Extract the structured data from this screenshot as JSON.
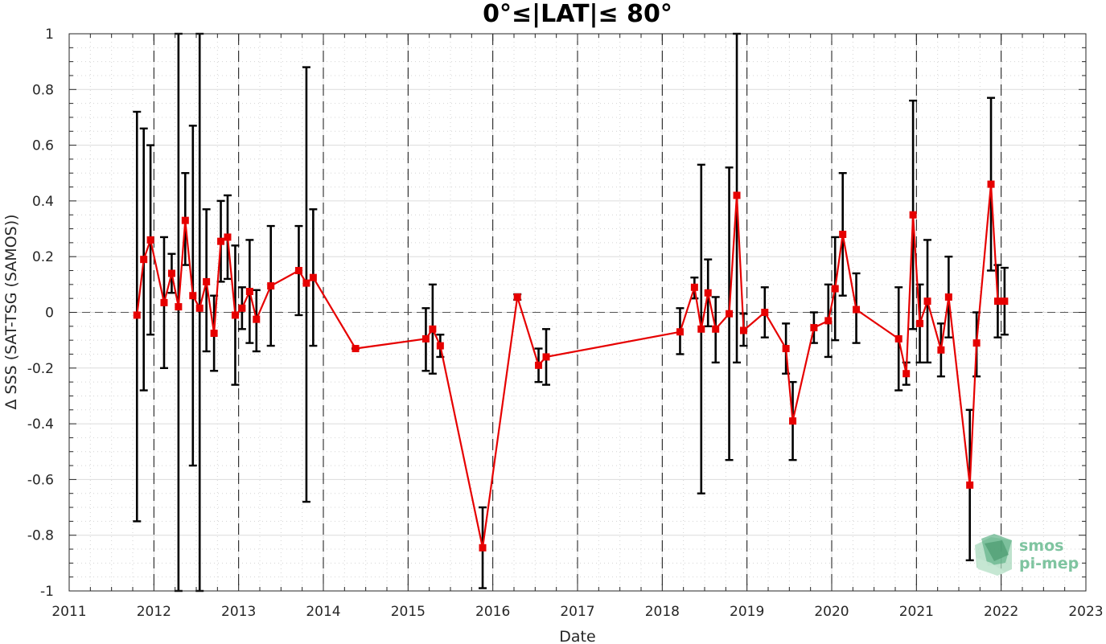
{
  "chart_data": {
    "type": "line",
    "title": "0°≤|LAT|≤ 80°",
    "xlabel": "Date",
    "ylabel": "Δ SSS (SAT-TSG (SAMOS))",
    "xlim": [
      2011,
      2023
    ],
    "ylim": [
      -1,
      1
    ],
    "x_ticks": [
      "2011",
      "2012",
      "2013",
      "2014",
      "2015",
      "2016",
      "2017",
      "2018",
      "2019",
      "2020",
      "2021",
      "2022",
      "2023"
    ],
    "y_ticks": [
      "1",
      "0.8",
      "0.6",
      "0.4",
      "0.2",
      "0",
      "-0.2",
      "-0.4",
      "-0.6",
      "-0.8",
      "-1"
    ],
    "year_separators": [
      2012,
      2013,
      2014,
      2015,
      2016,
      2017,
      2018,
      2019,
      2020,
      2021,
      2022
    ],
    "grid": true,
    "series": [
      {
        "color": "#e60000",
        "marker": "square",
        "points": [
          {
            "x": 2011.8,
            "y": -0.01,
            "low": -0.75,
            "high": 0.72
          },
          {
            "x": 2011.88,
            "y": 0.19,
            "low": -0.28,
            "high": 0.66
          },
          {
            "x": 2011.96,
            "y": 0.26,
            "low": -0.08,
            "high": 0.6
          },
          {
            "x": 2012.12,
            "y": 0.035,
            "low": -0.2,
            "high": 0.27
          },
          {
            "x": 2012.21,
            "y": 0.14,
            "low": 0.07,
            "high": 0.21
          },
          {
            "x": 2012.29,
            "y": 0.02,
            "low": -1.0,
            "high": 1.0
          },
          {
            "x": 2012.37,
            "y": 0.33,
            "low": 0.17,
            "high": 0.5
          },
          {
            "x": 2012.46,
            "y": 0.06,
            "low": -0.55,
            "high": 0.67
          },
          {
            "x": 2012.54,
            "y": 0.015,
            "low": -1.0,
            "high": 1.0
          },
          {
            "x": 2012.62,
            "y": 0.11,
            "low": -0.14,
            "high": 0.37
          },
          {
            "x": 2012.71,
            "y": -0.075,
            "low": -0.21,
            "high": 0.06
          },
          {
            "x": 2012.79,
            "y": 0.255,
            "low": 0.11,
            "high": 0.4
          },
          {
            "x": 2012.87,
            "y": 0.27,
            "low": 0.12,
            "high": 0.42
          },
          {
            "x": 2012.96,
            "y": -0.01,
            "low": -0.26,
            "high": 0.24
          },
          {
            "x": 2013.04,
            "y": 0.015,
            "low": -0.06,
            "high": 0.09
          },
          {
            "x": 2013.13,
            "y": 0.075,
            "low": -0.11,
            "high": 0.26
          },
          {
            "x": 2013.21,
            "y": -0.025,
            "low": -0.14,
            "high": 0.08
          },
          {
            "x": 2013.38,
            "y": 0.095,
            "low": -0.12,
            "high": 0.31
          },
          {
            "x": 2013.71,
            "y": 0.15,
            "low": -0.01,
            "high": 0.31
          },
          {
            "x": 2013.8,
            "y": 0.105,
            "low": -0.68,
            "high": 0.88
          },
          {
            "x": 2013.88,
            "y": 0.125,
            "low": -0.12,
            "high": 0.37
          },
          {
            "x": 2014.38,
            "y": -0.13,
            "low": -0.13,
            "high": -0.13
          },
          {
            "x": 2015.21,
            "y": -0.095,
            "low": -0.21,
            "high": 0.015
          },
          {
            "x": 2015.29,
            "y": -0.06,
            "low": -0.22,
            "high": 0.1
          },
          {
            "x": 2015.38,
            "y": -0.12,
            "low": -0.16,
            "high": -0.08
          },
          {
            "x": 2015.88,
            "y": -0.845,
            "low": -0.99,
            "high": -0.7
          },
          {
            "x": 2016.29,
            "y": 0.055,
            "low": 0.045,
            "high": 0.065
          },
          {
            "x": 2016.54,
            "y": -0.19,
            "low": -0.25,
            "high": -0.13
          },
          {
            "x": 2016.63,
            "y": -0.16,
            "low": -0.26,
            "high": -0.06
          },
          {
            "x": 2018.21,
            "y": -0.07,
            "low": -0.15,
            "high": 0.015
          },
          {
            "x": 2018.38,
            "y": 0.09,
            "low": 0.05,
            "high": 0.125
          },
          {
            "x": 2018.46,
            "y": -0.06,
            "low": -0.65,
            "high": 0.53
          },
          {
            "x": 2018.54,
            "y": 0.07,
            "low": -0.05,
            "high": 0.19
          },
          {
            "x": 2018.63,
            "y": -0.06,
            "low": -0.18,
            "high": 0.055
          },
          {
            "x": 2018.79,
            "y": -0.005,
            "low": -0.53,
            "high": 0.52
          },
          {
            "x": 2018.88,
            "y": 0.42,
            "low": -0.18,
            "high": 1.0
          },
          {
            "x": 2018.96,
            "y": -0.065,
            "low": -0.12,
            "high": -0.005
          },
          {
            "x": 2019.21,
            "y": 0.0,
            "low": -0.09,
            "high": 0.09
          },
          {
            "x": 2019.46,
            "y": -0.13,
            "low": -0.22,
            "high": -0.04
          },
          {
            "x": 2019.54,
            "y": -0.39,
            "low": -0.53,
            "high": -0.25
          },
          {
            "x": 2019.79,
            "y": -0.055,
            "low": -0.11,
            "high": 0.0
          },
          {
            "x": 2019.96,
            "y": -0.03,
            "low": -0.16,
            "high": 0.1
          },
          {
            "x": 2020.04,
            "y": 0.085,
            "low": -0.1,
            "high": 0.27
          },
          {
            "x": 2020.13,
            "y": 0.28,
            "low": 0.06,
            "high": 0.5
          },
          {
            "x": 2020.29,
            "y": 0.01,
            "low": -0.11,
            "high": 0.14
          },
          {
            "x": 2020.79,
            "y": -0.095,
            "low": -0.28,
            "high": 0.09
          },
          {
            "x": 2020.88,
            "y": -0.22,
            "low": -0.26,
            "high": -0.18
          },
          {
            "x": 2020.96,
            "y": 0.35,
            "low": -0.06,
            "high": 0.76
          },
          {
            "x": 2021.04,
            "y": -0.04,
            "low": -0.18,
            "high": 0.1
          },
          {
            "x": 2021.13,
            "y": 0.04,
            "low": -0.18,
            "high": 0.26
          },
          {
            "x": 2021.29,
            "y": -0.135,
            "low": -0.23,
            "high": -0.04
          },
          {
            "x": 2021.38,
            "y": 0.055,
            "low": -0.09,
            "high": 0.2
          },
          {
            "x": 2021.63,
            "y": -0.62,
            "low": -0.89,
            "high": -0.35
          },
          {
            "x": 2021.71,
            "y": -0.11,
            "low": -0.23,
            "high": 0.0
          },
          {
            "x": 2021.88,
            "y": 0.46,
            "low": 0.15,
            "high": 0.77
          },
          {
            "x": 2021.96,
            "y": 0.04,
            "low": -0.09,
            "high": 0.17
          },
          {
            "x": 2022.04,
            "y": 0.04,
            "low": -0.08,
            "high": 0.16
          }
        ]
      }
    ]
  },
  "logo": {
    "line1": "smos",
    "line2": "pi-mep"
  }
}
